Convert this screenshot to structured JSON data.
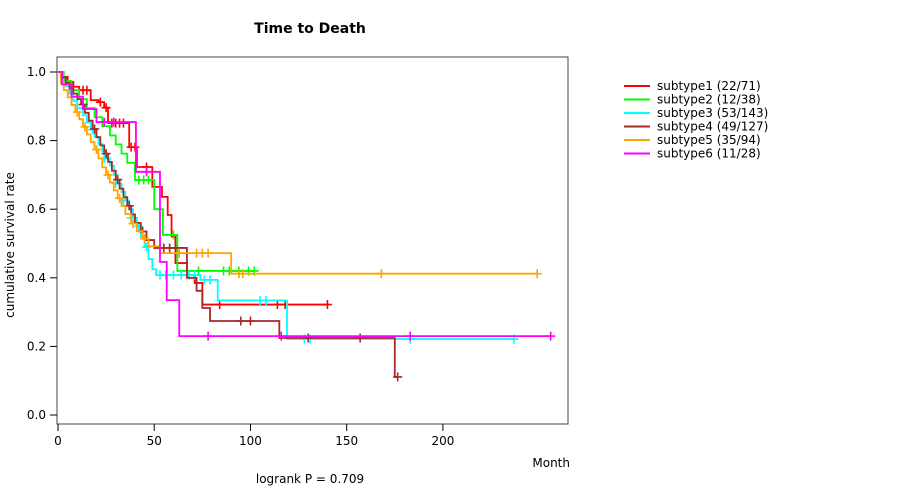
{
  "page": {
    "background": "#ffffff"
  },
  "chart_data": {
    "type": "line",
    "variant": "kaplan-meier-step",
    "title": "Time to Death",
    "xlabel": "Month",
    "ylabel": "cumulative survival rate",
    "footer": "logrank P = 0.709",
    "xlim": [
      0,
      265
    ],
    "ylim": [
      0,
      1
    ],
    "xticks": [
      0,
      50,
      100,
      150,
      200
    ],
    "yticks": [
      0,
      0.2,
      0.4,
      0.6,
      0.8,
      1.0
    ],
    "grid": false,
    "legend_position": "right",
    "axis_color": "#454545",
    "series": [
      {
        "name": "subtype1",
        "label": "subtype1 (22/71)",
        "events": "22/71",
        "color": "#ff0000",
        "steps": [
          [
            0,
            1.0
          ],
          [
            2,
            0.986
          ],
          [
            5,
            0.971
          ],
          [
            8,
            0.957
          ],
          [
            11,
            0.947
          ],
          [
            17,
            0.918
          ],
          [
            21,
            0.912
          ],
          [
            24,
            0.896
          ],
          [
            26,
            0.851
          ],
          [
            37,
            0.781
          ],
          [
            41,
            0.723
          ],
          [
            49,
            0.665
          ],
          [
            54,
            0.636
          ],
          [
            57,
            0.583
          ],
          [
            59,
            0.52
          ],
          [
            61,
            0.443
          ],
          [
            67,
            0.408
          ],
          [
            71,
            0.385
          ],
          [
            75,
            0.322
          ],
          [
            140,
            0.322
          ]
        ],
        "censors": [
          [
            13,
            0.947
          ],
          [
            15,
            0.947
          ],
          [
            22,
            0.912
          ],
          [
            25,
            0.896
          ],
          [
            28,
            0.851
          ],
          [
            30,
            0.851
          ],
          [
            32,
            0.851
          ],
          [
            34,
            0.851
          ],
          [
            38,
            0.781
          ],
          [
            40,
            0.781
          ],
          [
            46,
            0.723
          ],
          [
            84,
            0.322
          ],
          [
            114,
            0.322
          ],
          [
            118,
            0.322
          ],
          [
            140,
            0.322
          ]
        ]
      },
      {
        "name": "subtype2",
        "label": "subtype2 (12/38)",
        "events": "12/38",
        "color": "#00ff00",
        "steps": [
          [
            0,
            1.0
          ],
          [
            3,
            0.974
          ],
          [
            7,
            0.947
          ],
          [
            11,
            0.921
          ],
          [
            15,
            0.895
          ],
          [
            19,
            0.868
          ],
          [
            23,
            0.842
          ],
          [
            27,
            0.815
          ],
          [
            30,
            0.789
          ],
          [
            33,
            0.762
          ],
          [
            36,
            0.735
          ],
          [
            40,
            0.685
          ],
          [
            50,
            0.6
          ],
          [
            54.5,
            0.525
          ],
          [
            62,
            0.42
          ],
          [
            102,
            0.42
          ]
        ],
        "censors": [
          [
            42,
            0.685
          ],
          [
            44.5,
            0.685
          ],
          [
            47,
            0.685
          ],
          [
            60,
            0.525
          ],
          [
            73,
            0.42
          ],
          [
            86,
            0.42
          ],
          [
            89,
            0.42
          ],
          [
            94,
            0.42
          ],
          [
            99,
            0.42
          ],
          [
            102,
            0.42
          ]
        ]
      },
      {
        "name": "subtype3",
        "label": "subtype3 (53/143)",
        "events": "53/143",
        "color": "#00ffff",
        "steps": [
          [
            0,
            1.0
          ],
          [
            2,
            0.979
          ],
          [
            4,
            0.958
          ],
          [
            6,
            0.937
          ],
          [
            8,
            0.916
          ],
          [
            10,
            0.895
          ],
          [
            13,
            0.874
          ],
          [
            15,
            0.853
          ],
          [
            17,
            0.832
          ],
          [
            19,
            0.811
          ],
          [
            21,
            0.79
          ],
          [
            23,
            0.769
          ],
          [
            25,
            0.748
          ],
          [
            27,
            0.727
          ],
          [
            29,
            0.7
          ],
          [
            31,
            0.675
          ],
          [
            33,
            0.65
          ],
          [
            35,
            0.625
          ],
          [
            37,
            0.6
          ],
          [
            39,
            0.575
          ],
          [
            41,
            0.55
          ],
          [
            43,
            0.52
          ],
          [
            45,
            0.49
          ],
          [
            47,
            0.455
          ],
          [
            49,
            0.425
          ],
          [
            51,
            0.408
          ],
          [
            74,
            0.394
          ],
          [
            83,
            0.334
          ],
          [
            119,
            0.2215
          ],
          [
            237,
            0.2215
          ]
        ],
        "censors": [
          [
            18,
            0.832
          ],
          [
            24,
            0.748
          ],
          [
            30,
            0.675
          ],
          [
            34,
            0.625
          ],
          [
            38,
            0.575
          ],
          [
            42,
            0.55
          ],
          [
            46,
            0.49
          ],
          [
            53,
            0.408
          ],
          [
            56,
            0.408
          ],
          [
            60,
            0.408
          ],
          [
            64,
            0.408
          ],
          [
            68,
            0.408
          ],
          [
            71,
            0.408
          ],
          [
            76,
            0.394
          ],
          [
            79,
            0.394
          ],
          [
            105,
            0.334
          ],
          [
            108,
            0.334
          ],
          [
            128,
            0.2215
          ],
          [
            131,
            0.2215
          ],
          [
            183,
            0.2215
          ],
          [
            237,
            0.2215
          ]
        ]
      },
      {
        "name": "subtype4",
        "label": "subtype4 (49/127)",
        "events": "49/127",
        "color": "#a52a2a",
        "steps": [
          [
            0,
            1.0
          ],
          [
            2,
            0.984
          ],
          [
            4,
            0.968
          ],
          [
            6,
            0.952
          ],
          [
            8,
            0.937
          ],
          [
            10,
            0.921
          ],
          [
            12,
            0.905
          ],
          [
            14,
            0.881
          ],
          [
            16,
            0.858
          ],
          [
            18,
            0.834
          ],
          [
            20,
            0.81
          ],
          [
            22,
            0.786
          ],
          [
            24,
            0.762
          ],
          [
            26,
            0.738
          ],
          [
            28,
            0.712
          ],
          [
            30,
            0.686
          ],
          [
            32,
            0.66
          ],
          [
            34,
            0.635
          ],
          [
            36,
            0.61
          ],
          [
            38,
            0.585
          ],
          [
            40,
            0.56
          ],
          [
            43,
            0.535
          ],
          [
            46,
            0.51
          ],
          [
            50,
            0.487
          ],
          [
            67,
            0.4
          ],
          [
            72,
            0.362
          ],
          [
            75,
            0.312
          ],
          [
            79,
            0.274
          ],
          [
            115,
            0.2245
          ],
          [
            175,
            0.111
          ],
          [
            176.5,
            0.111
          ]
        ],
        "censors": [
          [
            13,
            0.905
          ],
          [
            19,
            0.834
          ],
          [
            25,
            0.762
          ],
          [
            31,
            0.686
          ],
          [
            37,
            0.61
          ],
          [
            44,
            0.535
          ],
          [
            55,
            0.487
          ],
          [
            58,
            0.487
          ],
          [
            61,
            0.487
          ],
          [
            95,
            0.274
          ],
          [
            100,
            0.274
          ],
          [
            130,
            0.2245
          ],
          [
            157,
            0.2245
          ],
          [
            176.5,
            0.111
          ]
        ]
      },
      {
        "name": "subtype5",
        "label": "subtype5 (35/94)",
        "events": "35/94",
        "color": "#ffa500",
        "steps": [
          [
            0,
            1.0
          ],
          [
            1.5,
            0.968
          ],
          [
            3,
            0.947
          ],
          [
            5,
            0.926
          ],
          [
            7,
            0.904
          ],
          [
            9,
            0.883
          ],
          [
            11,
            0.862
          ],
          [
            13,
            0.84
          ],
          [
            15,
            0.818
          ],
          [
            17,
            0.796
          ],
          [
            19,
            0.774
          ],
          [
            21,
            0.748
          ],
          [
            23,
            0.722
          ],
          [
            25,
            0.7
          ],
          [
            27,
            0.678
          ],
          [
            29,
            0.655
          ],
          [
            31,
            0.632
          ],
          [
            33,
            0.609
          ],
          [
            35,
            0.586
          ],
          [
            38,
            0.558
          ],
          [
            41,
            0.536
          ],
          [
            44,
            0.514
          ],
          [
            47,
            0.492
          ],
          [
            53,
            0.472
          ],
          [
            90,
            0.412
          ],
          [
            249,
            0.412
          ]
        ],
        "censors": [
          [
            10,
            0.883
          ],
          [
            14,
            0.84
          ],
          [
            20,
            0.774
          ],
          [
            26,
            0.7
          ],
          [
            32,
            0.632
          ],
          [
            39,
            0.558
          ],
          [
            45,
            0.514
          ],
          [
            63,
            0.472
          ],
          [
            72,
            0.472
          ],
          [
            75,
            0.472
          ],
          [
            78,
            0.472
          ],
          [
            94,
            0.412
          ],
          [
            96,
            0.412
          ],
          [
            168,
            0.412
          ],
          [
            249,
            0.412
          ]
        ]
      },
      {
        "name": "subtype6",
        "label": "subtype6 (11/28)",
        "events": "11/28",
        "color": "#ff00ff",
        "steps": [
          [
            0,
            1.0
          ],
          [
            2,
            0.964
          ],
          [
            7,
            0.928
          ],
          [
            13,
            0.892
          ],
          [
            20,
            0.854
          ],
          [
            40.5,
            0.709
          ],
          [
            53,
            0.446
          ],
          [
            56.5,
            0.335
          ],
          [
            63,
            0.23
          ],
          [
            256,
            0.23
          ]
        ],
        "censors": [
          [
            24,
            0.854
          ],
          [
            29,
            0.854
          ],
          [
            46,
            0.709
          ],
          [
            78,
            0.23
          ],
          [
            116,
            0.23
          ],
          [
            183,
            0.23
          ],
          [
            256,
            0.23
          ]
        ]
      }
    ]
  }
}
